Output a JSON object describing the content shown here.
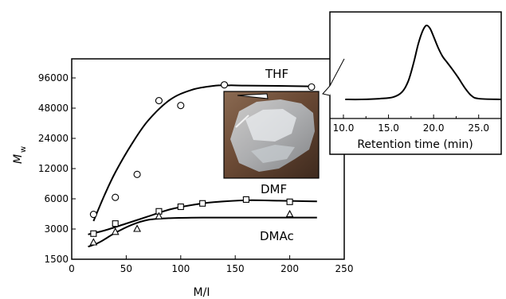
{
  "chart_data": [
    {
      "type": "scatter",
      "xlabel": "M/I",
      "ylabel_main": "M",
      "ylabel_sub": "w",
      "xlim": [
        0,
        250
      ],
      "ylim": [
        1500,
        96000
      ],
      "y_scale": "log2",
      "x_ticks": [
        "0",
        "50",
        "100",
        "150",
        "200",
        "250"
      ],
      "x_tick_values": [
        0,
        50,
        100,
        150,
        200,
        250
      ],
      "y_ticks": [
        "96000",
        "48000",
        "24000",
        "12000",
        "6000",
        "3000",
        "1500"
      ],
      "y_tick_values": [
        96000,
        48000,
        24000,
        12000,
        6000,
        3000,
        1500
      ],
      "series": [
        {
          "name": "THF",
          "marker": "circle",
          "x": [
            20,
            40,
            60,
            80,
            100,
            140,
            220
          ],
          "y": [
            4200,
            6200,
            10500,
            57000,
            51000,
            82000,
            78000
          ],
          "fit_x": [
            20,
            30,
            40,
            55,
            70,
            90,
            110,
            130,
            145,
            160,
            190,
            220
          ],
          "fit_y": [
            3600,
            6500,
            11000,
            21000,
            36000,
            58000,
            73000,
            80000,
            81000,
            80500,
            80000,
            79000
          ]
        },
        {
          "name": "DMF",
          "marker": "square",
          "x": [
            20,
            40,
            80,
            100,
            120,
            160,
            200
          ],
          "y": [
            2700,
            3400,
            4500,
            5000,
            5400,
            5900,
            5600
          ],
          "fit_x": [
            15,
            30,
            50,
            70,
            90,
            110,
            130,
            160,
            190,
            225
          ],
          "fit_y": [
            2650,
            2900,
            3400,
            4000,
            4700,
            5200,
            5550,
            5800,
            5750,
            5650
          ]
        },
        {
          "name": "DMAc",
          "marker": "triangle",
          "x": [
            20,
            40,
            60,
            80,
            200
          ],
          "y": [
            2200,
            2800,
            3000,
            4000,
            4200
          ],
          "fit_x": [
            15,
            25,
            40,
            55,
            70,
            90,
            120,
            160,
            225
          ],
          "fit_y": [
            2000,
            2200,
            2750,
            3300,
            3700,
            3850,
            3900,
            3900,
            3900
          ]
        }
      ]
    },
    {
      "type": "line",
      "xlabel": "Retention time (min)",
      "x_ticks": [
        "10.0",
        "15.0",
        "20.0",
        "25.0"
      ],
      "x_tick_values": [
        10,
        15,
        20,
        25
      ],
      "xlim": [
        8.5,
        27.5
      ],
      "x": [
        8.5,
        12,
        14,
        15.5,
        16.5,
        17.2,
        17.8,
        18.3,
        18.8,
        19.2,
        19.6,
        20.0,
        20.5,
        21.0,
        21.5,
        22.0,
        22.7,
        23.5,
        24.2,
        25,
        27.5
      ],
      "y": [
        0.0,
        0.0,
        0.01,
        0.03,
        0.1,
        0.25,
        0.5,
        0.75,
        0.93,
        1.0,
        0.96,
        0.85,
        0.7,
        0.58,
        0.5,
        0.42,
        0.3,
        0.15,
        0.05,
        0.01,
        0.0
      ]
    }
  ],
  "photo": {
    "description_icon": "transparent-gel-photo"
  }
}
